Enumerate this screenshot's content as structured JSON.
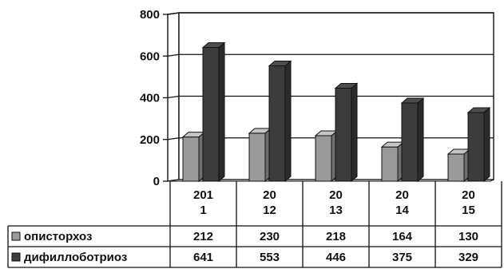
{
  "chart_data": {
    "type": "bar",
    "categories": [
      [
        "201",
        "1"
      ],
      [
        "20",
        "12"
      ],
      [
        "20",
        "13"
      ],
      [
        "20",
        "14"
      ],
      [
        "20",
        "15"
      ]
    ],
    "series": [
      {
        "name": "описторхоз",
        "values": [
          212,
          230,
          218,
          164,
          130
        ],
        "color": "#9a9a9a"
      },
      {
        "name": "дифиллоботриоз",
        "values": [
          641,
          553,
          446,
          375,
          329
        ],
        "color": "#3c3c3c"
      }
    ],
    "yticks": [
      "0",
      "200",
      "400",
      "600",
      "800"
    ],
    "ylim": [
      0,
      800
    ],
    "grid": true,
    "legend": "data-table",
    "has_data_table": true
  }
}
